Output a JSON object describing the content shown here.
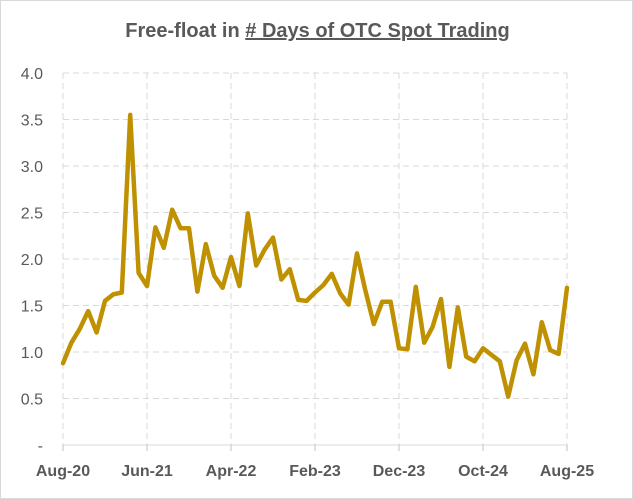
{
  "chart_data": {
    "type": "line",
    "title_prefix": "Free-float in ",
    "title_underlined": "# Days of OTC Spot Trading",
    "xlabel": "",
    "ylabel": "",
    "ylim": [
      0,
      4.0
    ],
    "y_ticks": [
      0,
      0.5,
      1.0,
      1.5,
      2.0,
      2.5,
      3.0,
      3.5,
      4.0
    ],
    "y_tick_labels": [
      "-",
      "0.5",
      "1.0",
      "1.5",
      "2.0",
      "2.5",
      "3.0",
      "3.5",
      "4.0"
    ],
    "x_ticks": [
      {
        "x": "2020-08",
        "label": "Aug-20"
      },
      {
        "x": "2021-06",
        "label": "Jun-21"
      },
      {
        "x": "2022-04",
        "label": "Apr-22"
      },
      {
        "x": "2023-02",
        "label": "Feb-23"
      },
      {
        "x": "2023-12",
        "label": "Dec-23"
      },
      {
        "x": "2024-10",
        "label": "Oct-24"
      },
      {
        "x": "2025-08",
        "label": "Aug-25"
      }
    ],
    "grid": {
      "vertical": true,
      "horizontal": true,
      "style": "dashed"
    },
    "line_color": "#bf9000",
    "series": [
      {
        "name": "",
        "x": [
          "2020-08",
          "2020-09",
          "2020-10",
          "2020-11",
          "2020-12",
          "2021-01",
          "2021-02",
          "2021-03",
          "2021-04",
          "2021-05",
          "2021-06",
          "2021-07",
          "2021-08",
          "2021-09",
          "2021-10",
          "2021-11",
          "2021-12",
          "2022-01",
          "2022-02",
          "2022-03",
          "2022-04",
          "2022-05",
          "2022-06",
          "2022-07",
          "2022-08",
          "2022-09",
          "2022-10",
          "2022-11",
          "2022-12",
          "2023-01",
          "2023-02",
          "2023-03",
          "2023-04",
          "2023-05",
          "2023-06",
          "2023-07",
          "2023-08",
          "2023-09",
          "2023-10",
          "2023-11",
          "2023-12",
          "2024-01",
          "2024-02",
          "2024-03",
          "2024-04",
          "2024-05",
          "2024-06",
          "2024-07",
          "2024-08",
          "2024-09",
          "2024-10",
          "2024-11",
          "2024-12",
          "2025-01",
          "2025-02",
          "2025-03",
          "2025-04",
          "2025-05",
          "2025-06",
          "2025-07",
          "2025-08"
        ],
        "values": [
          0.88,
          1.1,
          1.25,
          1.44,
          1.21,
          1.55,
          1.62,
          1.64,
          3.55,
          1.85,
          1.71,
          2.34,
          2.12,
          2.53,
          2.33,
          2.33,
          1.65,
          2.16,
          1.82,
          1.69,
          2.02,
          1.71,
          2.49,
          1.93,
          2.1,
          2.23,
          1.78,
          1.89,
          1.56,
          1.55,
          1.64,
          1.72,
          1.84,
          1.63,
          1.51,
          2.06,
          1.66,
          1.3,
          1.54,
          1.54,
          1.04,
          1.03,
          1.7,
          1.1,
          1.27,
          1.57,
          0.84,
          1.48,
          0.95,
          0.9,
          1.04,
          0.97,
          0.9,
          0.52,
          0.91,
          1.09,
          0.76,
          1.32,
          1.02,
          0.98,
          1.69
        ]
      }
    ]
  }
}
